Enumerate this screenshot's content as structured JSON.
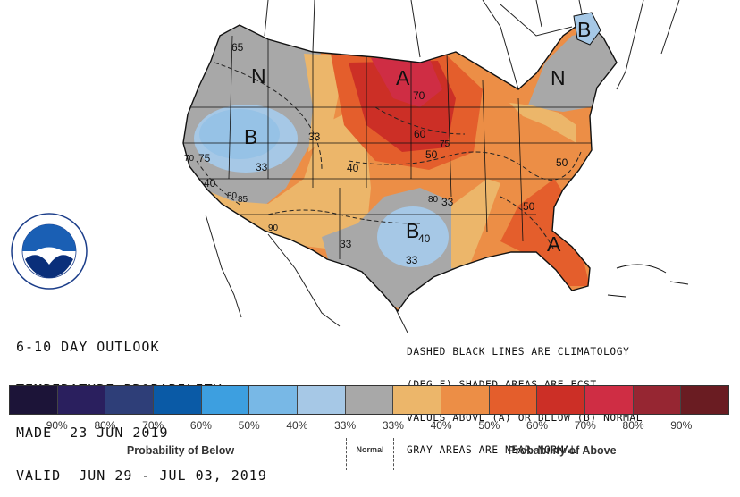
{
  "map": {
    "category_letters": [
      {
        "id": "b-northeast",
        "text": "B"
      },
      {
        "id": "n-northwest",
        "text": "N"
      },
      {
        "id": "a-midwest",
        "text": "A"
      },
      {
        "id": "b-great-basin",
        "text": "B"
      },
      {
        "id": "n-northeast",
        "text": "N"
      },
      {
        "id": "b-texas",
        "text": "B"
      },
      {
        "id": "a-florida",
        "text": "A"
      }
    ],
    "contour_labels": [
      {
        "id": "c65",
        "text": "65"
      },
      {
        "id": "c70-midwest",
        "text": "70"
      },
      {
        "id": "c60-midwest",
        "text": "60"
      },
      {
        "id": "c50-midwest",
        "text": "50"
      },
      {
        "id": "c75-midwest",
        "text": "75"
      },
      {
        "id": "c33-rockies",
        "text": "33"
      },
      {
        "id": "c33-basin",
        "text": "33"
      },
      {
        "id": "c40-plains",
        "text": "40"
      },
      {
        "id": "c70-west",
        "text": "70"
      },
      {
        "id": "c75-west",
        "text": "75"
      },
      {
        "id": "c40-ca",
        "text": "40"
      },
      {
        "id": "c80-sw",
        "text": "80"
      },
      {
        "id": "c85-sw",
        "text": "85"
      },
      {
        "id": "c90-sw",
        "text": "90"
      },
      {
        "id": "c33-texas-west",
        "text": "33"
      },
      {
        "id": "c80-texas",
        "text": "80"
      },
      {
        "id": "c33-texas-east",
        "text": "33"
      },
      {
        "id": "c40-texas",
        "text": "40"
      },
      {
        "id": "c33-texas-south",
        "text": "33"
      },
      {
        "id": "c50-carolina",
        "text": "50"
      },
      {
        "id": "c50-southeast",
        "text": "50"
      }
    ]
  },
  "outlook": {
    "line1": "6-10 DAY OUTLOOK",
    "line2": "TEMPERATURE PROBABILITY",
    "line3": "MADE  23 JUN 2019",
    "line4": "VALID  JUN 29 - JUL 03, 2019"
  },
  "note": {
    "line1": "DASHED BLACK LINES ARE CLIMATOLOGY",
    "line2": "(DEG F) SHADED AREAS ARE FCST",
    "line3": "VALUES ABOVE (A) OR BELOW (B) NORMAL",
    "line4": "GRAY AREAS ARE NEAR-NORMAL"
  },
  "legend": {
    "colors": [
      "#1c1438",
      "#2a1f5e",
      "#2e3e78",
      "#0a5aa6",
      "#3d9fe0",
      "#78b8e6",
      "#a6c8e6",
      "#a8a8a8",
      "#ecb66a",
      "#ec8e46",
      "#e45e2c",
      "#cc2f26",
      "#cf2d44",
      "#962632",
      "#6a1c22"
    ],
    "ticks": [
      "90%",
      "80%",
      "70%",
      "60%",
      "50%",
      "40%",
      "33%",
      "33%",
      "40%",
      "50%",
      "60%",
      "70%",
      "80%",
      "90%"
    ],
    "below_caption": "Probability of Below",
    "normal_caption": "Normal",
    "above_caption": "Probability of Above"
  }
}
